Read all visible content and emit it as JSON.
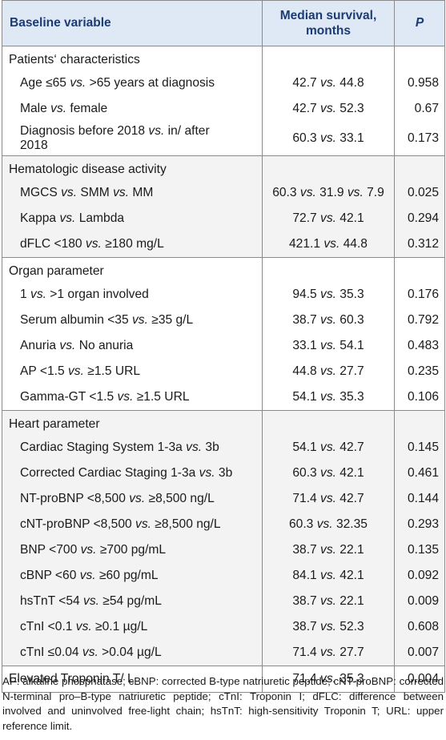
{
  "header": {
    "col1": "Baseline variable",
    "col2_line1": "Median survival,",
    "col2_line2": "months",
    "col3": "P"
  },
  "sections": [
    {
      "title": "Patients‘ characteristics",
      "shade": false,
      "rows": [
        {
          "label": "Age ≤65 <i>vs.</i> >65 years at diagnosis",
          "value": "42.7 <i>vs.</i> 44.8",
          "p": "0.958"
        },
        {
          "label": "Male <i>vs.</i> female",
          "value": "42.7 <i>vs.</i> 52.3",
          "p": "0.67"
        },
        {
          "label": "Diagnosis before 2018 <i>vs.</i> in/ after<br>2018",
          "value": "60.3 <i>vs.</i> 33.1",
          "p": "0.173",
          "tall": true
        }
      ]
    },
    {
      "title": "Hematologic disease activity",
      "shade": true,
      "rows": [
        {
          "label": "MGCS <i>vs.</i> SMM <i>vs.</i> MM",
          "value": "60.3 <i>vs.</i> 31.9 <i>vs.</i> 7.9",
          "p": "0.025"
        },
        {
          "label": "Kappa <i>vs.</i> Lambda",
          "value": "72.7 <i>vs.</i> 42.1",
          "p": "0.294"
        },
        {
          "label": "dFLC <180 <i>vs.</i> ≥180 mg/L",
          "value": "421.1 <i>vs.</i> 44.8",
          "p": "0.312"
        }
      ]
    },
    {
      "title": "Organ parameter",
      "shade": false,
      "rows": [
        {
          "label": "1 <i>vs.</i> >1 organ involved",
          "value": "94.5 <i>vs.</i> 35.3",
          "p": "0.176"
        },
        {
          "label": "Serum albumin <35 <i>vs.</i> ≥35 g/L",
          "value": "38.7 <i>vs.</i> 60.3",
          "p": "0.792"
        },
        {
          "label": "Anuria <i>vs.</i> No anuria",
          "value": "33.1 <i>vs.</i> 54.1",
          "p": "0.483"
        },
        {
          "label": " AP <1.5 <i>vs.</i> ≥1.5 URL",
          "value": "44.8 <i>vs.</i> 27.7",
          "p": "0.235"
        },
        {
          "label": "Gamma-GT <1.5 <i>vs.</i> ≥1.5 URL",
          "value": "54.1 <i>vs.</i> 35.3",
          "p": "0.106"
        }
      ]
    },
    {
      "title": "Heart parameter",
      "shade": true,
      "rows": [
        {
          "label": "Cardiac Staging System 1-3a <i>vs.</i> 3b",
          "value": "54.1 <i>vs.</i> 42.7",
          "p": "0.145"
        },
        {
          "label": "Corrected Cardiac Staging 1-3a <i>vs.</i> 3b",
          "value": "60.3 <i>vs.</i> 42.1",
          "p": "0.461"
        },
        {
          "label": "NT-proBNP <8,500 <i>vs.</i> ≥8,500 ng/L",
          "value": "71.4 <i>vs.</i> 42.7",
          "p": "0.144"
        },
        {
          "label": "cNT-proBNP <8,500 <i>vs.</i> ≥8,500 ng/L",
          "value": "60.3 <i>vs.</i> 32.35",
          "p": "0.293"
        },
        {
          "label": "BNP <700 <i>vs.</i> ≥700 pg/mL",
          "value": "38.7 <i>vs.</i> 22.1",
          "p": "0.135"
        },
        {
          "label": "cBNP <60 <i>vs.</i> ≥60 pg/mL",
          "value": "84.1 <i>vs.</i> 42.1",
          "p": "0.092"
        },
        {
          "label": "hsTnT <54 <i>vs.</i> ≥54 pg/mL",
          "value": "38.7 <i>vs.</i> 22.1",
          "p": "0.009"
        },
        {
          "label": "cTnI <0.1 <i>vs.</i> ≥0.1 µg/L",
          "value": "38.7 <i>vs.</i> 52.3",
          "p": "0.608"
        },
        {
          "label": "cTnI ≤0.04 <i>vs.</i> >0.04 µg/L",
          "value": "71.4 <i>vs.</i> 27.7",
          "p": "0.007"
        }
      ]
    },
    {
      "title": "",
      "shade": false,
      "rows": [
        {
          "label": "Elevated Troponin T/ L",
          "value": "71.4 <i>vs.</i> 35.3",
          "p": "0.004",
          "flush": true
        }
      ]
    }
  ],
  "footnote": "AP: alkaline phosphatase; cBNP: corrected B-type natriuretic peptide; cNT-proBNP: corrected N-terminal pro–B-type natriuretic peptide; cTnI: Troponin I; dFLC: difference between involved and uninvolved free-light chain; hsTnT: high-sensitivity Troponin T; URL: upper reference limit."
}
